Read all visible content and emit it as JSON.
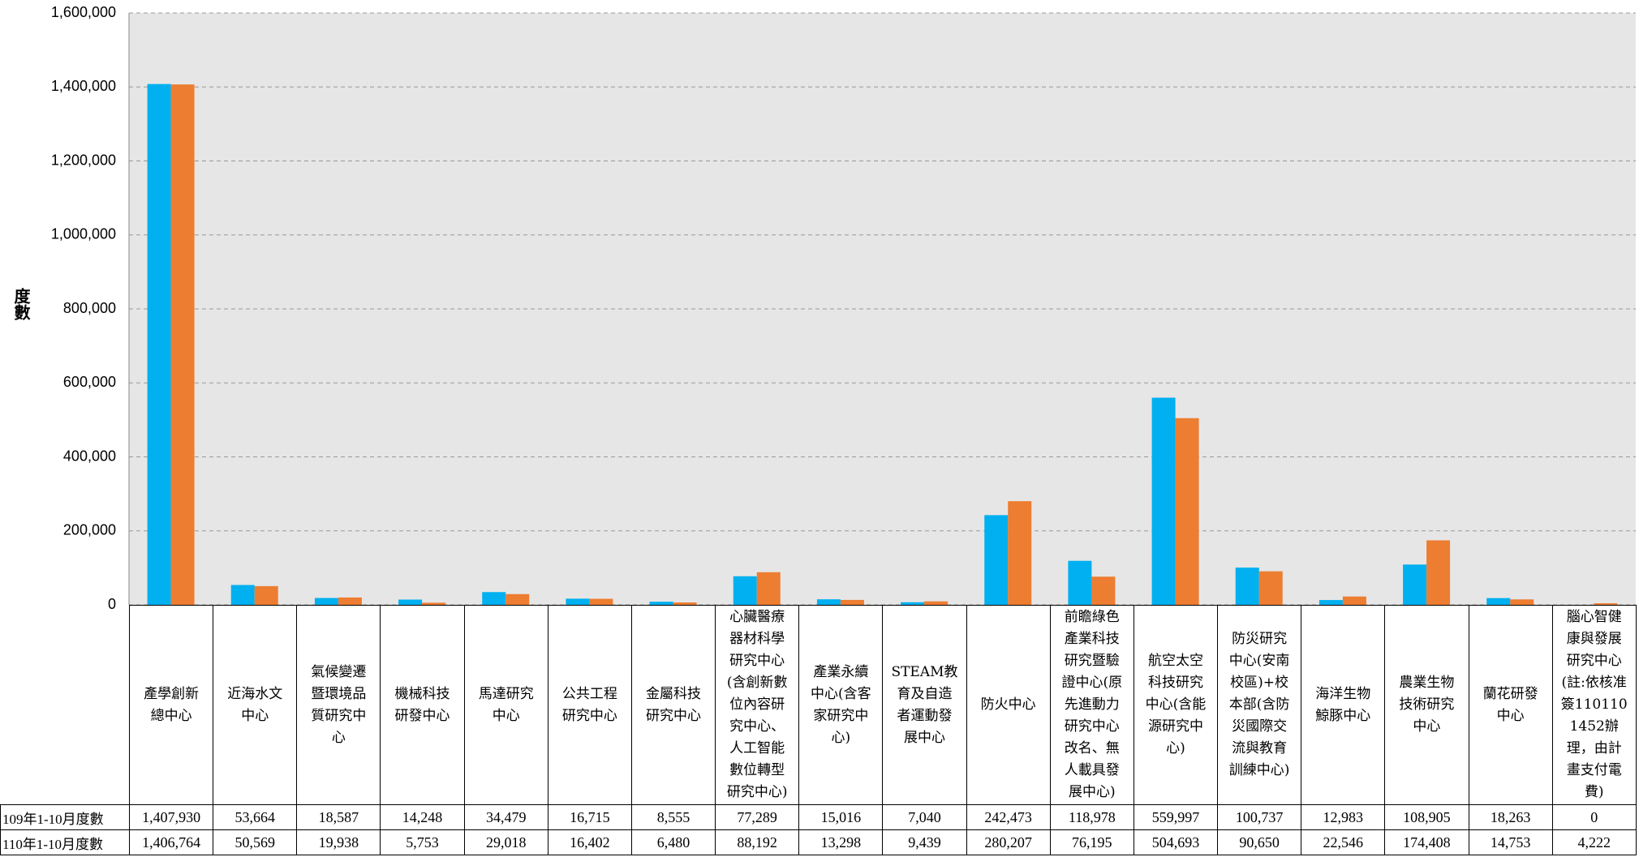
{
  "chart_data": {
    "type": "bar",
    "y_label": "度數",
    "categories": [
      "產學創新總中心",
      "近海水文中心",
      "氣候變遷暨環境品質研究中心",
      "機械科技研發中心",
      "馬達研究中心",
      "公共工程研究中心",
      "金屬科技研究中心",
      "心臟醫療器材科學研究中心(含創新數位內容研究中心、人工智能數位轉型研究中心)",
      "產業永續中心(含客家研究中心)",
      "STEAM教育及自造者運動發展中心",
      "防火中心",
      "前瞻綠色產業科技研究暨驗證中心(原先進動力研究中心改名、無人載具發展中心)",
      "航空太空科技研究中心(含能源研究中心)",
      "防災研究中心(安南校區)+校本部(含防災國際交流與教育訓練中心)",
      "海洋生物鯨豚中心",
      "農業生物技術研究中心",
      "蘭花研發中心",
      "腦心智健康與發展研究中心(註:依核准簽1101101452辦理，由計畫支付電費)"
    ],
    "series": [
      {
        "name": "109年1-10月度數",
        "color": "#00b0f0",
        "values": [
          1407930,
          53664,
          18587,
          14248,
          34479,
          16715,
          8555,
          77289,
          15016,
          7040,
          242473,
          118978,
          559997,
          100737,
          12983,
          108905,
          18263,
          0
        ],
        "value_labels": [
          "1,407,930",
          "53,664",
          "18,587",
          "14,248",
          "34,479",
          "16,715",
          "8,555",
          "77,289",
          "15,016",
          "7,040",
          "242,473",
          "118,978",
          "559,997",
          "100,737",
          "12,983",
          "108,905",
          "18,263",
          "0"
        ]
      },
      {
        "name": "110年1-10月度數",
        "color": "#ed7d31",
        "values": [
          1406764,
          50569,
          19938,
          5753,
          29018,
          16402,
          6480,
          88192,
          13298,
          9439,
          280207,
          76195,
          504693,
          90650,
          22546,
          174408,
          14753,
          4222
        ],
        "value_labels": [
          "1,406,764",
          "50,569",
          "19,938",
          "5,753",
          "29,018",
          "16,402",
          "6,480",
          "88,192",
          "13,298",
          "9,439",
          "280,207",
          "76,195",
          "504,693",
          "90,650",
          "22,546",
          "174,408",
          "14,753",
          "4,222"
        ]
      }
    ],
    "ylim": [
      0,
      1600000
    ],
    "yticks": [
      0,
      {
        "value": 200000,
        "label": "200,000"
      },
      {
        "value": 400000,
        "label": "400,000"
      },
      {
        "value": 600000,
        "label": "600,000"
      },
      {
        "value": 800000,
        "label": "800,000"
      },
      {
        "value": 1000000,
        "label": "1,000,000"
      },
      {
        "value": 1200000,
        "label": "1,200,000"
      },
      {
        "value": 1400000,
        "label": "1,400,000"
      },
      {
        "value": 1600000,
        "label": "1,600,000"
      }
    ],
    "grid": true
  }
}
